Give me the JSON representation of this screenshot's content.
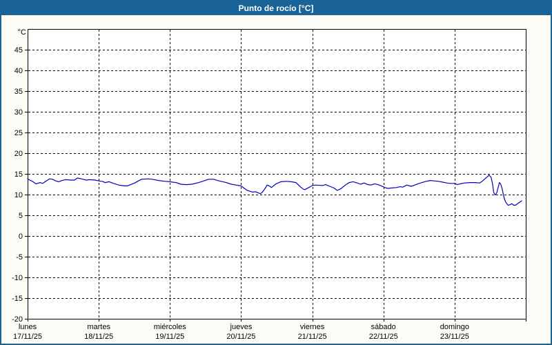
{
  "window": {
    "title": "Punto de rocío [°C]"
  },
  "colors": {
    "header_bg": "#1A6396",
    "border": "#1A6396",
    "content_bg": "#FCFCF6",
    "plot_bg": "#FFFFFF",
    "grid": "#000000",
    "text": "#000000",
    "title_text": "#FFFFFF",
    "line": "#0000BB"
  },
  "chart_data": {
    "type": "line",
    "title": "Punto de rocío [°C]",
    "y_unit_label": "°C",
    "ylim": [
      -20,
      50
    ],
    "ytick_step": 5,
    "ytick_labels": [
      "45",
      "40",
      "35",
      "30",
      "25",
      "20",
      "15",
      "10",
      "5",
      "0",
      "-5",
      "-10",
      "-15",
      "-20"
    ],
    "grid": "dashed",
    "legend": "none",
    "xlim_hours": [
      0,
      168
    ],
    "hours_per_day": 24,
    "x_days": [
      {
        "name": "lunes",
        "date": "17/11/25"
      },
      {
        "name": "martes",
        "date": "18/11/25"
      },
      {
        "name": "miércoles",
        "date": "19/11/25"
      },
      {
        "name": "jueves",
        "date": "20/11/25"
      },
      {
        "name": "viernes",
        "date": "21/11/25"
      },
      {
        "name": "sábado",
        "date": "22/11/25"
      },
      {
        "name": "domingo",
        "date": "23/11/25"
      }
    ],
    "series": [
      {
        "name": "Punto de rocío",
        "color": "#0000BB",
        "points": [
          [
            0,
            13.8
          ],
          [
            1,
            13.4
          ],
          [
            1.6,
            13.2
          ],
          [
            2.8,
            12.6
          ],
          [
            4.2,
            12.9
          ],
          [
            5.1,
            12.7
          ],
          [
            6.3,
            13.3
          ],
          [
            7.4,
            13.8
          ],
          [
            8.4,
            13.7
          ],
          [
            9.5,
            13.3
          ],
          [
            10.5,
            13.1
          ],
          [
            11.6,
            13.4
          ],
          [
            12.8,
            13.6
          ],
          [
            14.5,
            13.5
          ],
          [
            15.8,
            13.5
          ],
          [
            16.8,
            14.0
          ],
          [
            18.1,
            13.8
          ],
          [
            19.8,
            13.5
          ],
          [
            20.9,
            13.6
          ],
          [
            22.8,
            13.5
          ],
          [
            24,
            13.3
          ],
          [
            25.2,
            13.2
          ],
          [
            26.1,
            12.9
          ],
          [
            27.5,
            13.1
          ],
          [
            29,
            12.7
          ],
          [
            30.7,
            12.3
          ],
          [
            32.6,
            12.1
          ],
          [
            33.7,
            12.1
          ],
          [
            36.1,
            12.8
          ],
          [
            38.4,
            13.7
          ],
          [
            40.7,
            13.8
          ],
          [
            42,
            13.7
          ],
          [
            44.2,
            13.4
          ],
          [
            46.5,
            13.2
          ],
          [
            48,
            13.1
          ],
          [
            48.9,
            13.0
          ],
          [
            50.1,
            12.9
          ],
          [
            51.7,
            12.5
          ],
          [
            53.5,
            12.4
          ],
          [
            55.4,
            12.5
          ],
          [
            57.7,
            12.9
          ],
          [
            59.4,
            13.3
          ],
          [
            61,
            13.7
          ],
          [
            62.8,
            13.7
          ],
          [
            64,
            13.4
          ],
          [
            65.2,
            13.2
          ],
          [
            67,
            12.9
          ],
          [
            68.7,
            12.5
          ],
          [
            70.3,
            12.3
          ],
          [
            72,
            12.1
          ],
          [
            72.9,
            11.6
          ],
          [
            74.1,
            11.0
          ],
          [
            75,
            10.8
          ],
          [
            75.9,
            10.6
          ],
          [
            76.8,
            10.7
          ],
          [
            77.8,
            10.4
          ],
          [
            78.5,
            10.2
          ],
          [
            79.2,
            10.6
          ],
          [
            80.1,
            11.5
          ],
          [
            80.8,
            12.3
          ],
          [
            81.5,
            12.1
          ],
          [
            82.2,
            11.7
          ],
          [
            83.8,
            12.6
          ],
          [
            85.4,
            13.1
          ],
          [
            87.3,
            13.2
          ],
          [
            88.9,
            13.1
          ],
          [
            90.5,
            12.9
          ],
          [
            92.1,
            11.8
          ],
          [
            93,
            11.3
          ],
          [
            93.5,
            11.2
          ],
          [
            95.1,
            11.8
          ],
          [
            96,
            12.2
          ],
          [
            97,
            12.3
          ],
          [
            99.5,
            12.2
          ],
          [
            100.5,
            12.4
          ],
          [
            101.9,
            12.0
          ],
          [
            103.3,
            11.6
          ],
          [
            104.4,
            11.0
          ],
          [
            105.6,
            11.4
          ],
          [
            107,
            12.2
          ],
          [
            108.4,
            12.9
          ],
          [
            109.8,
            13.1
          ],
          [
            111.2,
            12.8
          ],
          [
            112.3,
            12.5
          ],
          [
            113.5,
            12.8
          ],
          [
            114.7,
            12.4
          ],
          [
            115.8,
            12.3
          ],
          [
            117,
            12.6
          ],
          [
            118.2,
            12.4
          ],
          [
            119.3,
            12.1
          ],
          [
            120.5,
            11.7
          ],
          [
            121.4,
            11.5
          ],
          [
            122.8,
            11.6
          ],
          [
            124.4,
            11.7
          ],
          [
            125.6,
            11.9
          ],
          [
            126.5,
            11.8
          ],
          [
            127.9,
            12.3
          ],
          [
            129.3,
            12.0
          ],
          [
            130.2,
            12.2
          ],
          [
            131.6,
            12.6
          ],
          [
            133,
            12.9
          ],
          [
            134.4,
            13.2
          ],
          [
            135.8,
            13.4
          ],
          [
            137.2,
            13.3
          ],
          [
            138.6,
            13.2
          ],
          [
            140,
            13.0
          ],
          [
            141.4,
            12.8
          ],
          [
            142.5,
            12.7
          ],
          [
            144,
            12.7
          ],
          [
            144.9,
            12.4
          ],
          [
            145.9,
            12.6
          ],
          [
            147.3,
            12.8
          ],
          [
            149.1,
            12.9
          ],
          [
            151,
            12.9
          ],
          [
            152.4,
            12.8
          ],
          [
            153.3,
            13.2
          ],
          [
            154.2,
            13.8
          ],
          [
            155.2,
            14.4
          ],
          [
            155.6,
            14.7
          ],
          [
            156.3,
            14.2
          ],
          [
            156.8,
            12.5
          ],
          [
            157.2,
            10.5
          ],
          [
            157.7,
            9.9
          ],
          [
            158.2,
            10.4
          ],
          [
            158.6,
            11.5
          ],
          [
            159.1,
            12.9
          ],
          [
            159.5,
            12.6
          ],
          [
            160,
            11.5
          ],
          [
            160.5,
            9.8
          ],
          [
            160.9,
            8.7
          ],
          [
            161.4,
            8.0
          ],
          [
            162.1,
            7.4
          ],
          [
            162.8,
            7.6
          ],
          [
            163.3,
            7.8
          ],
          [
            164,
            7.4
          ],
          [
            164.7,
            7.5
          ],
          [
            165.4,
            7.9
          ],
          [
            166.1,
            8.2
          ],
          [
            166.6,
            8.5
          ]
        ]
      }
    ]
  }
}
